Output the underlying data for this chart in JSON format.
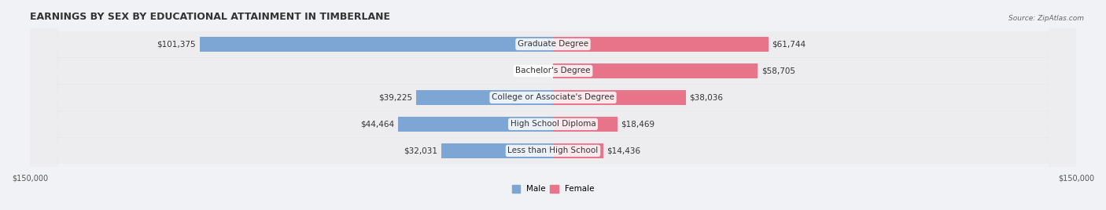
{
  "title": "EARNINGS BY SEX BY EDUCATIONAL ATTAINMENT IN TIMBERLANE",
  "source": "Source: ZipAtlas.com",
  "categories": [
    "Less than High School",
    "High School Diploma",
    "College or Associate's Degree",
    "Bachelor's Degree",
    "Graduate Degree"
  ],
  "male_values": [
    32031,
    44464,
    39225,
    0,
    101375
  ],
  "female_values": [
    14436,
    18469,
    38036,
    58705,
    61744
  ],
  "male_color": "#7ea6d4",
  "female_color": "#e8748a",
  "male_label": "Male",
  "female_label": "Female",
  "x_max": 150000,
  "bar_height": 0.55,
  "bg_color": "#f0f0f0",
  "row_bg_colors": [
    "#e8e8ec",
    "#e8e8ec"
  ],
  "title_fontsize": 9,
  "label_fontsize": 7.5,
  "tick_fontsize": 7,
  "category_fontsize": 7.5
}
